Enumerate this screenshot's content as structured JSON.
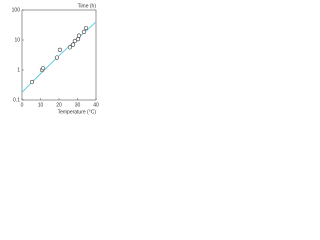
{
  "chart_data": {
    "type": "scatter",
    "y_label": "Time (h)",
    "x_label": "Temperature (°C)",
    "xlim": [
      0,
      40
    ],
    "xticks": [
      0,
      10,
      20,
      30,
      40
    ],
    "ylim": [
      0.1,
      100
    ],
    "yticks": [
      0.1,
      1,
      10,
      100
    ],
    "log_y": true,
    "series": [
      {
        "color": "#55c8e0",
        "line": true,
        "x": [
          0,
          5,
          10,
          15,
          20,
          25,
          30,
          35,
          40
        ],
        "values": [
          0.18,
          0.37,
          0.75,
          1.5,
          3.0,
          5.8,
          11,
          21,
          40
        ]
      },
      {
        "color": "#333333",
        "line": false,
        "x": [
          5.4,
          10.8,
          11.4,
          18.9,
          20.5,
          25.9,
          27.6,
          28.6,
          30.3,
          30.8,
          33.5,
          34.6
        ],
        "values": [
          0.4,
          1.0,
          1.15,
          2.6,
          4.7,
          5.7,
          7,
          9.3,
          10.7,
          14,
          18.7,
          25
        ]
      }
    ]
  }
}
